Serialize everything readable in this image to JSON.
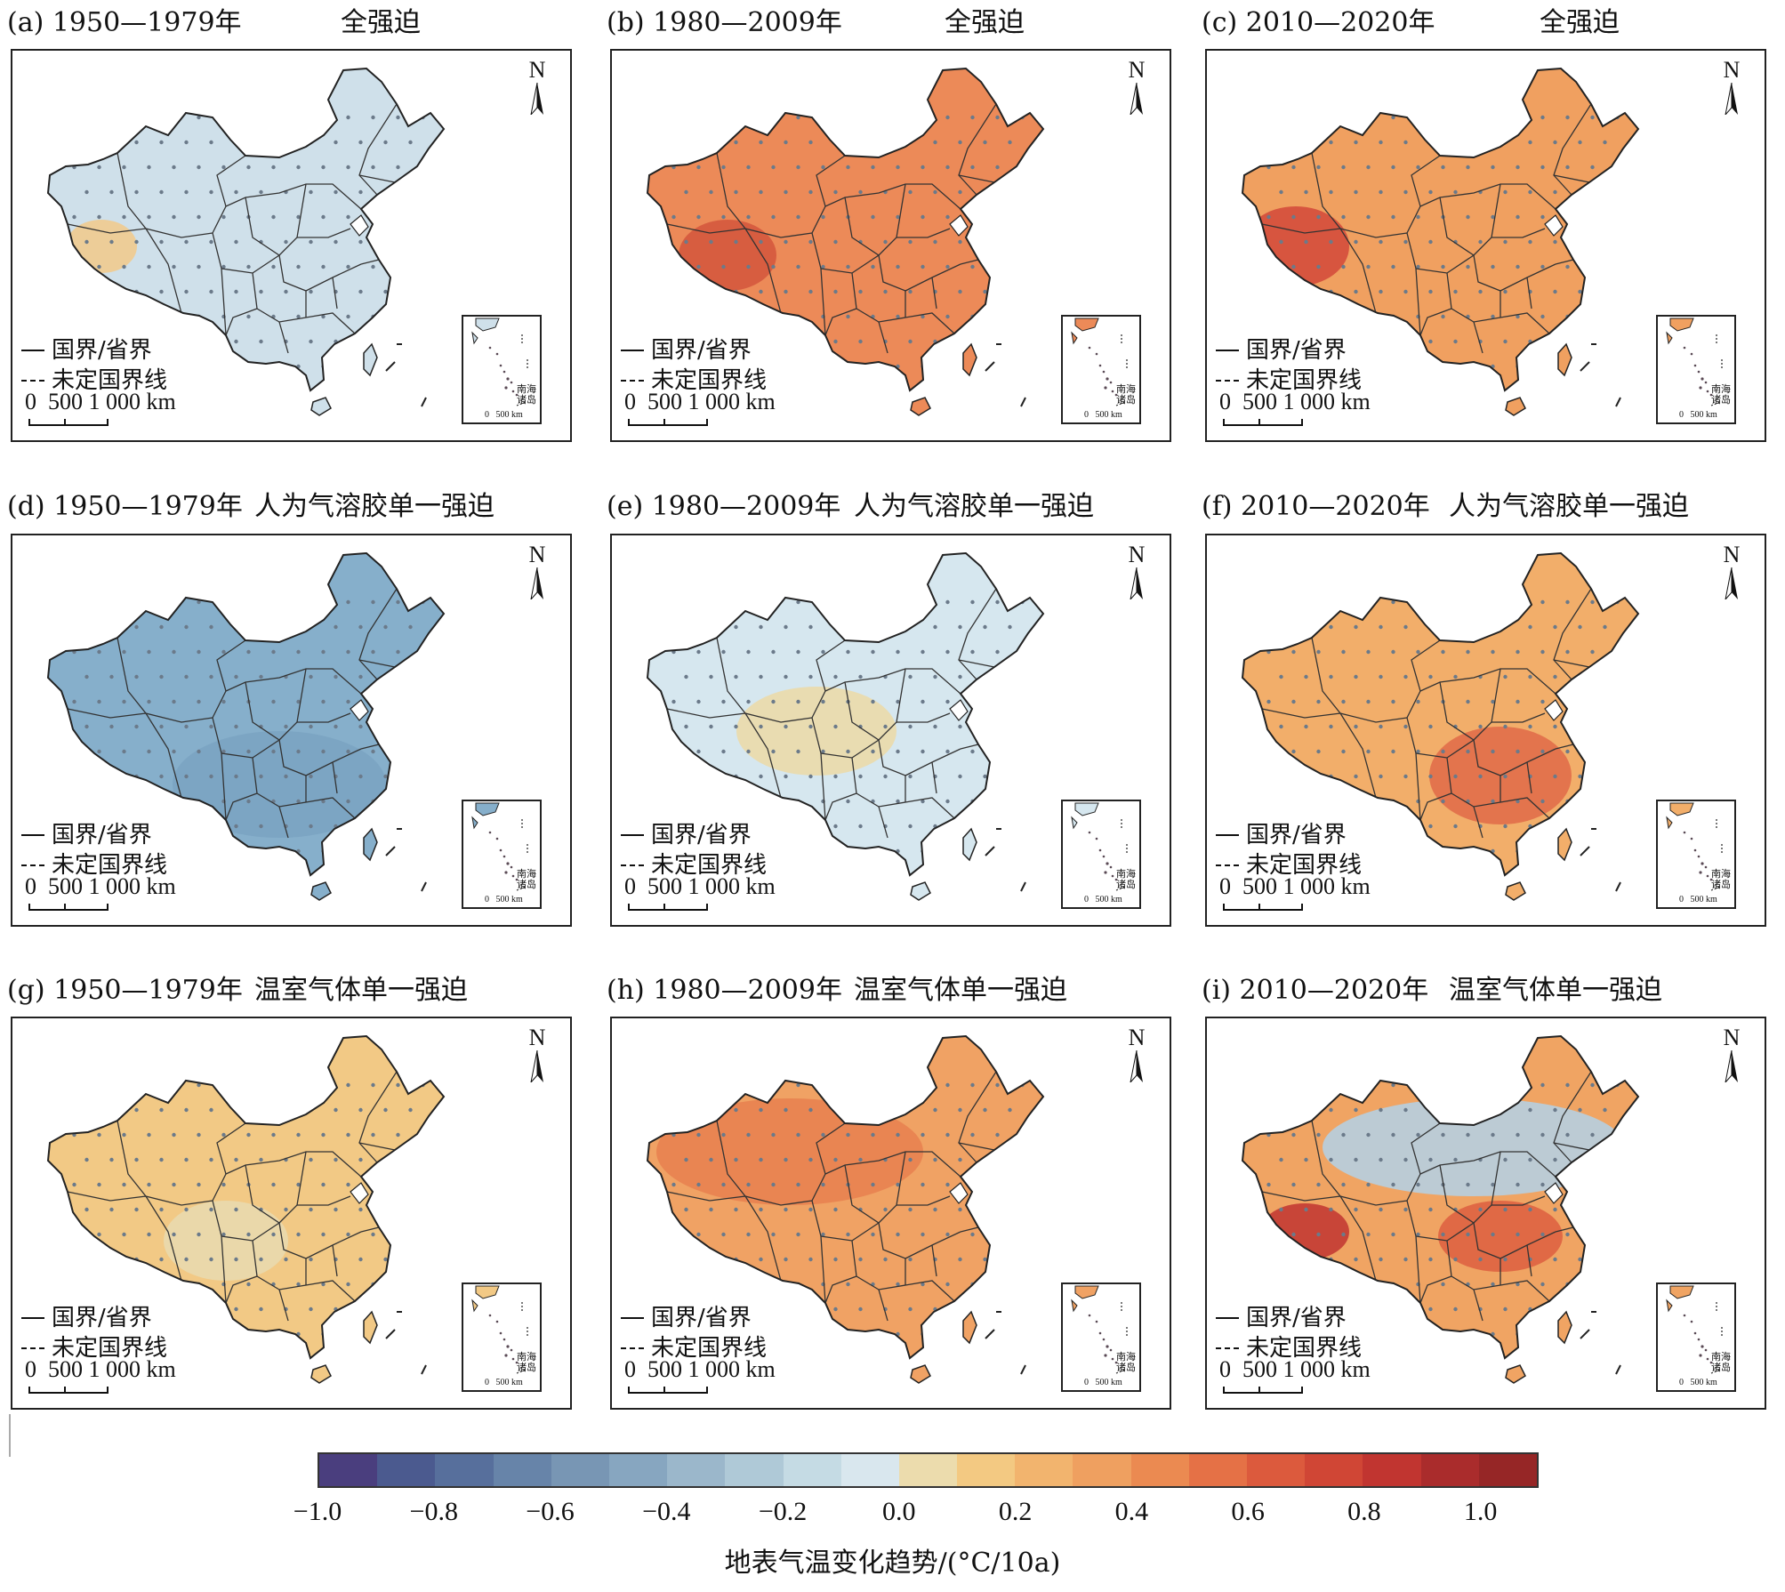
{
  "panels": [
    {
      "id": "a",
      "label": "(a) 1950—1979年",
      "forcing": "全强迫",
      "fill": "#cfe0ea",
      "accent": "#f2c98a"
    },
    {
      "id": "b",
      "label": "(b) 1980—2009年",
      "forcing": "全强迫",
      "fill": "#ec8a58",
      "accent": "#d4553c"
    },
    {
      "id": "c",
      "label": "(c) 2010—2020年",
      "forcing": "全强迫",
      "fill": "#f0a060",
      "accent": "#d2483a"
    },
    {
      "id": "d",
      "label": "(d) 1950—1979年",
      "forcing": "人为气溶胶单一强迫",
      "fill": "#86afcb",
      "accent": "#7aa3c2"
    },
    {
      "id": "e",
      "label": "(e) 1980—2009年",
      "forcing": "人为气溶胶单一强迫",
      "fill": "#d6e7ef",
      "accent": "#ecd9a6"
    },
    {
      "id": "f",
      "label": "(f) 2010—2020年",
      "forcing": "人为气溶胶单一强迫",
      "fill": "#f2ae6a",
      "accent": "#e06a48"
    },
    {
      "id": "g",
      "label": "(g) 1950—1979年",
      "forcing": "温室气体单一强迫",
      "fill": "#f2c985",
      "accent": "#e9dbb0"
    },
    {
      "id": "h",
      "label": "(h) 1980—2009年",
      "forcing": "温室气体单一强迫",
      "fill": "#f0a264",
      "accent": "#e7804f"
    },
    {
      "id": "i",
      "label": "(i) 2010—2020年",
      "forcing": "温室气体单一强迫",
      "fill": "#f0a463",
      "accent": "#c7d9e5"
    }
  ],
  "map_common": {
    "north": "N",
    "legend_border": "国界/省界",
    "legend_undetermined": "未定国界线",
    "scale_label": "0  500 1 000 km",
    "inset_label": "南海诸岛",
    "inset_scale": "0   500 km"
  },
  "colorbar": {
    "title": "地表气温变化趋势/(°C/10a)",
    "ticks": [
      "−1.0",
      "−0.8",
      "−0.6",
      "−0.4",
      "−0.2",
      "0.0",
      "0.2",
      "0.4",
      "0.6",
      "0.8",
      "1.0"
    ],
    "tick_values": [
      -1.0,
      -0.8,
      -0.6,
      -0.4,
      -0.2,
      0.0,
      0.2,
      0.4,
      0.6,
      0.8,
      1.0
    ],
    "range": [
      -1.0,
      1.1
    ],
    "colors": [
      "#4a3e7e",
      "#4b5a8f",
      "#576f9c",
      "#6784a9",
      "#7896b4",
      "#87a6c0",
      "#9bb7cb",
      "#afc9d7",
      "#c5dbe4",
      "#d9e7ee",
      "#ecdcad",
      "#f3c982",
      "#f2b46e",
      "#efa060",
      "#eb8a51",
      "#e57146",
      "#dc5a3d",
      "#d04635",
      "#c13530",
      "#aa2c2c",
      "#962626"
    ]
  }
}
